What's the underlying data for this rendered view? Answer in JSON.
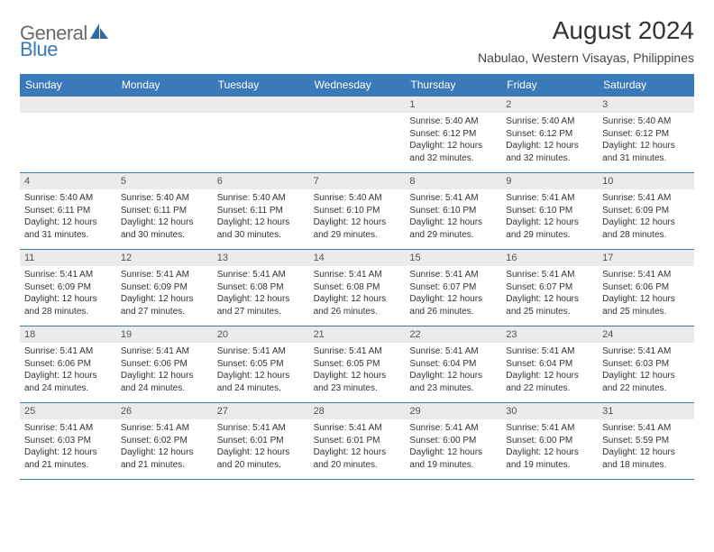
{
  "brand": {
    "part1": "General",
    "part2": "Blue"
  },
  "title": "August 2024",
  "location": "Nabulao, Western Visayas, Philippines",
  "colors": {
    "header_bg": "#3a7ab8",
    "header_text": "#ffffff",
    "daynum_bg": "#ebebeb",
    "border": "#3a7ab8",
    "text": "#333333",
    "logo_gray": "#6a6a6a",
    "logo_blue": "#3a7ab8"
  },
  "day_names": [
    "Sunday",
    "Monday",
    "Tuesday",
    "Wednesday",
    "Thursday",
    "Friday",
    "Saturday"
  ],
  "weeks": [
    [
      {
        "num": "",
        "sunrise": "",
        "sunset": "",
        "daylight": ""
      },
      {
        "num": "",
        "sunrise": "",
        "sunset": "",
        "daylight": ""
      },
      {
        "num": "",
        "sunrise": "",
        "sunset": "",
        "daylight": ""
      },
      {
        "num": "",
        "sunrise": "",
        "sunset": "",
        "daylight": ""
      },
      {
        "num": "1",
        "sunrise": "Sunrise: 5:40 AM",
        "sunset": "Sunset: 6:12 PM",
        "daylight": "Daylight: 12 hours and 32 minutes."
      },
      {
        "num": "2",
        "sunrise": "Sunrise: 5:40 AM",
        "sunset": "Sunset: 6:12 PM",
        "daylight": "Daylight: 12 hours and 32 minutes."
      },
      {
        "num": "3",
        "sunrise": "Sunrise: 5:40 AM",
        "sunset": "Sunset: 6:12 PM",
        "daylight": "Daylight: 12 hours and 31 minutes."
      }
    ],
    [
      {
        "num": "4",
        "sunrise": "Sunrise: 5:40 AM",
        "sunset": "Sunset: 6:11 PM",
        "daylight": "Daylight: 12 hours and 31 minutes."
      },
      {
        "num": "5",
        "sunrise": "Sunrise: 5:40 AM",
        "sunset": "Sunset: 6:11 PM",
        "daylight": "Daylight: 12 hours and 30 minutes."
      },
      {
        "num": "6",
        "sunrise": "Sunrise: 5:40 AM",
        "sunset": "Sunset: 6:11 PM",
        "daylight": "Daylight: 12 hours and 30 minutes."
      },
      {
        "num": "7",
        "sunrise": "Sunrise: 5:40 AM",
        "sunset": "Sunset: 6:10 PM",
        "daylight": "Daylight: 12 hours and 29 minutes."
      },
      {
        "num": "8",
        "sunrise": "Sunrise: 5:41 AM",
        "sunset": "Sunset: 6:10 PM",
        "daylight": "Daylight: 12 hours and 29 minutes."
      },
      {
        "num": "9",
        "sunrise": "Sunrise: 5:41 AM",
        "sunset": "Sunset: 6:10 PM",
        "daylight": "Daylight: 12 hours and 29 minutes."
      },
      {
        "num": "10",
        "sunrise": "Sunrise: 5:41 AM",
        "sunset": "Sunset: 6:09 PM",
        "daylight": "Daylight: 12 hours and 28 minutes."
      }
    ],
    [
      {
        "num": "11",
        "sunrise": "Sunrise: 5:41 AM",
        "sunset": "Sunset: 6:09 PM",
        "daylight": "Daylight: 12 hours and 28 minutes."
      },
      {
        "num": "12",
        "sunrise": "Sunrise: 5:41 AM",
        "sunset": "Sunset: 6:09 PM",
        "daylight": "Daylight: 12 hours and 27 minutes."
      },
      {
        "num": "13",
        "sunrise": "Sunrise: 5:41 AM",
        "sunset": "Sunset: 6:08 PM",
        "daylight": "Daylight: 12 hours and 27 minutes."
      },
      {
        "num": "14",
        "sunrise": "Sunrise: 5:41 AM",
        "sunset": "Sunset: 6:08 PM",
        "daylight": "Daylight: 12 hours and 26 minutes."
      },
      {
        "num": "15",
        "sunrise": "Sunrise: 5:41 AM",
        "sunset": "Sunset: 6:07 PM",
        "daylight": "Daylight: 12 hours and 26 minutes."
      },
      {
        "num": "16",
        "sunrise": "Sunrise: 5:41 AM",
        "sunset": "Sunset: 6:07 PM",
        "daylight": "Daylight: 12 hours and 25 minutes."
      },
      {
        "num": "17",
        "sunrise": "Sunrise: 5:41 AM",
        "sunset": "Sunset: 6:06 PM",
        "daylight": "Daylight: 12 hours and 25 minutes."
      }
    ],
    [
      {
        "num": "18",
        "sunrise": "Sunrise: 5:41 AM",
        "sunset": "Sunset: 6:06 PM",
        "daylight": "Daylight: 12 hours and 24 minutes."
      },
      {
        "num": "19",
        "sunrise": "Sunrise: 5:41 AM",
        "sunset": "Sunset: 6:06 PM",
        "daylight": "Daylight: 12 hours and 24 minutes."
      },
      {
        "num": "20",
        "sunrise": "Sunrise: 5:41 AM",
        "sunset": "Sunset: 6:05 PM",
        "daylight": "Daylight: 12 hours and 24 minutes."
      },
      {
        "num": "21",
        "sunrise": "Sunrise: 5:41 AM",
        "sunset": "Sunset: 6:05 PM",
        "daylight": "Daylight: 12 hours and 23 minutes."
      },
      {
        "num": "22",
        "sunrise": "Sunrise: 5:41 AM",
        "sunset": "Sunset: 6:04 PM",
        "daylight": "Daylight: 12 hours and 23 minutes."
      },
      {
        "num": "23",
        "sunrise": "Sunrise: 5:41 AM",
        "sunset": "Sunset: 6:04 PM",
        "daylight": "Daylight: 12 hours and 22 minutes."
      },
      {
        "num": "24",
        "sunrise": "Sunrise: 5:41 AM",
        "sunset": "Sunset: 6:03 PM",
        "daylight": "Daylight: 12 hours and 22 minutes."
      }
    ],
    [
      {
        "num": "25",
        "sunrise": "Sunrise: 5:41 AM",
        "sunset": "Sunset: 6:03 PM",
        "daylight": "Daylight: 12 hours and 21 minutes."
      },
      {
        "num": "26",
        "sunrise": "Sunrise: 5:41 AM",
        "sunset": "Sunset: 6:02 PM",
        "daylight": "Daylight: 12 hours and 21 minutes."
      },
      {
        "num": "27",
        "sunrise": "Sunrise: 5:41 AM",
        "sunset": "Sunset: 6:01 PM",
        "daylight": "Daylight: 12 hours and 20 minutes."
      },
      {
        "num": "28",
        "sunrise": "Sunrise: 5:41 AM",
        "sunset": "Sunset: 6:01 PM",
        "daylight": "Daylight: 12 hours and 20 minutes."
      },
      {
        "num": "29",
        "sunrise": "Sunrise: 5:41 AM",
        "sunset": "Sunset: 6:00 PM",
        "daylight": "Daylight: 12 hours and 19 minutes."
      },
      {
        "num": "30",
        "sunrise": "Sunrise: 5:41 AM",
        "sunset": "Sunset: 6:00 PM",
        "daylight": "Daylight: 12 hours and 19 minutes."
      },
      {
        "num": "31",
        "sunrise": "Sunrise: 5:41 AM",
        "sunset": "Sunset: 5:59 PM",
        "daylight": "Daylight: 12 hours and 18 minutes."
      }
    ]
  ]
}
